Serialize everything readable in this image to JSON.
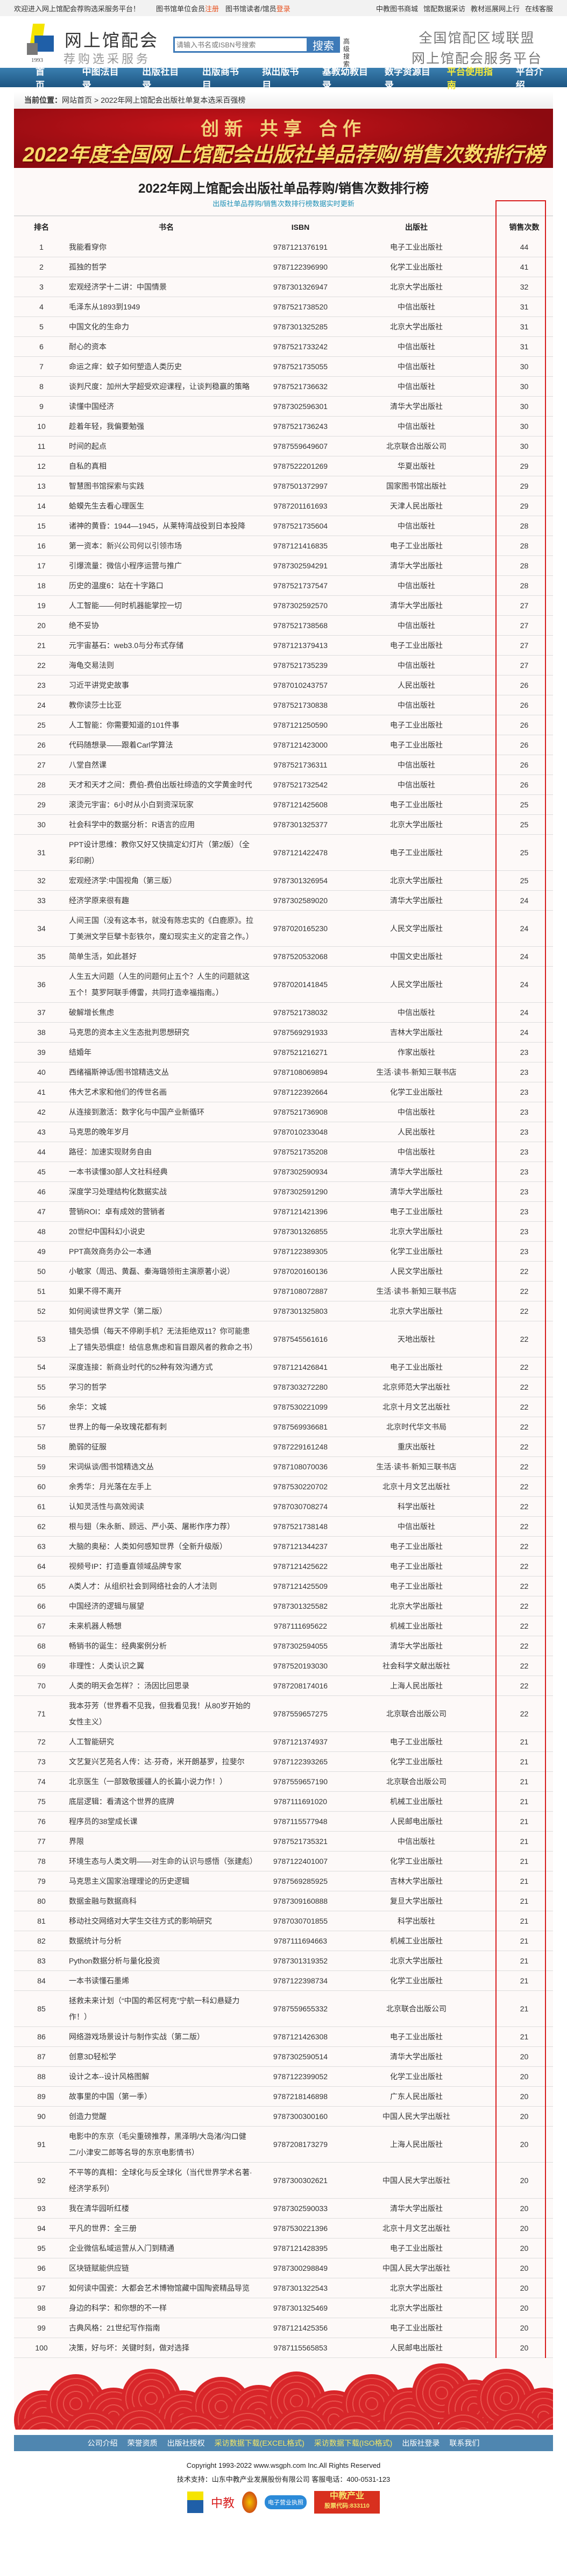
{
  "topbar": {
    "welcome": "欢迎进入网上馆配会荐购选采服务平台！",
    "member": "图书馆单位会员",
    "register": "注册",
    "reader": "图书馆读者/馆员",
    "login": "登录",
    "links": [
      "中教图书商城",
      "馆配数据采访",
      "教材巡展网上行",
      "在线客服"
    ]
  },
  "header": {
    "logo_year": "1993",
    "brand": "网上馆配会",
    "brand_sub": "荐购选采服务",
    "search_placeholder": "请输入书名或ISBN号搜索",
    "search_button": "搜索",
    "advanced_search": "高级搜索",
    "slogan1": "全国馆配区域联盟",
    "slogan2": "网上馆配会服务平台"
  },
  "nav": {
    "items": [
      "首页",
      "中图法目录",
      "出版社目录",
      "出版商书目",
      "拟出版书目",
      "基教幼教目录",
      "数字资源目录",
      "平台使用指南",
      "平台介绍"
    ],
    "highlight": "平台使用指南"
  },
  "breadcrumb": {
    "label": "当前位置：",
    "home": "网站首页",
    "sep": ">",
    "current": "2022年网上馆配会出版社单复本选采百强榜"
  },
  "banner": {
    "slogan": "创新 共享 合作",
    "title": "2022年度全国网上馆配会出版社单品荐购/销售次数排行榜"
  },
  "page": {
    "title": "2022年网上馆配会出版社单品荐购/销售次数排行榜",
    "subtitle": "出版社单品荐购/销售次数排行榜数据实时更新"
  },
  "table": {
    "headers": [
      "排名",
      "书名",
      "ISBN",
      "出版社",
      "销售次数"
    ],
    "rows": [
      [
        "1",
        "我能看穿你",
        "9787121376191",
        "电子工业出版社",
        "44"
      ],
      [
        "2",
        "孤独的哲学",
        "9787122396990",
        "化学工业出版社",
        "41"
      ],
      [
        "3",
        "宏观经济学十二讲：中国情景",
        "9787301326947",
        "北京大学出版社",
        "32"
      ],
      [
        "4",
        "毛泽东从1893到1949",
        "9787521738520",
        "中信出版社",
        "31"
      ],
      [
        "5",
        "中国文化的生命力",
        "9787301325285",
        "北京大学出版社",
        "31"
      ],
      [
        "6",
        "耐心的资本",
        "9787521733242",
        "中信出版社",
        "31"
      ],
      [
        "7",
        "命运之痒：蚊子如何塑造人类历史",
        "9787521735055",
        "中信出版社",
        "30"
      ],
      [
        "8",
        "谈判尺度：加州大学超受欢迎课程，让谈判稳赢的策略",
        "9787521736632",
        "中信出版社",
        "30"
      ],
      [
        "9",
        "读懂中国经济",
        "9787302596301",
        "清华大学出版社",
        "30"
      ],
      [
        "10",
        "趁着年轻，我偏要勉强",
        "9787521736243",
        "中信出版社",
        "30"
      ],
      [
        "11",
        "时间的起点",
        "9787559649607",
        "北京联合出版公司",
        "30"
      ],
      [
        "12",
        "自私的真相",
        "9787522201269",
        "华夏出版社",
        "29"
      ],
      [
        "13",
        "智慧图书馆探索与实践",
        "9787501372997",
        "国家图书馆出版社",
        "29"
      ],
      [
        "14",
        "蛤蟆先生去看心理医生",
        "9787201161693",
        "天津人民出版社",
        "29"
      ],
      [
        "15",
        "诸神的黄昏：1944—1945，从莱特湾战役到日本投降",
        "9787521735604",
        "中信出版社",
        "28"
      ],
      [
        "16",
        "第一资本：新兴公司何以引领市场",
        "9787121416835",
        "电子工业出版社",
        "28"
      ],
      [
        "17",
        "引爆流量：微信小程序运营与推广",
        "9787302594291",
        "清华大学出版社",
        "28"
      ],
      [
        "18",
        "历史的温度6：站在十字路口",
        "9787521737547",
        "中信出版社",
        "28"
      ],
      [
        "19",
        "人工智能——何时机器能掌控一切",
        "9787302592570",
        "清华大学出版社",
        "27"
      ],
      [
        "20",
        "绝不妥协",
        "9787521738568",
        "中信出版社",
        "27"
      ],
      [
        "21",
        "元宇宙基石：web3.0与分布式存储",
        "9787121379413",
        "电子工业出版社",
        "27"
      ],
      [
        "22",
        "海龟交易法则",
        "9787521735239",
        "中信出版社",
        "27"
      ],
      [
        "23",
        "习近平讲党史故事",
        "9787010243757",
        "人民出版社",
        "26"
      ],
      [
        "24",
        "教你读莎士比亚",
        "9787521730838",
        "中信出版社",
        "26"
      ],
      [
        "25",
        "人工智能：你需要知道的101件事",
        "9787121250590",
        "电子工业出版社",
        "26"
      ],
      [
        "26",
        "代码随想录——跟着Carl学算法",
        "9787121423000",
        "电子工业出版社",
        "26"
      ],
      [
        "27",
        "八堂自然课",
        "9787521736311",
        "中信出版社",
        "26"
      ],
      [
        "28",
        "天才和天才之间：费伯-费伯出版社缔造的文学黄金时代",
        "9787521732542",
        "中信出版社",
        "26"
      ],
      [
        "29",
        "滚烫元宇宙：6小时从小白到资深玩家",
        "9787121425608",
        "电子工业出版社",
        "25"
      ],
      [
        "30",
        "社会科学中的数据分析：R语言的应用",
        "9787301325377",
        "北京大学出版社",
        "25"
      ],
      [
        "31",
        "PPT设计思维：教你又好又快搞定幻灯片（第2版）（全彩印刷）",
        "9787121422478",
        "电子工业出版社",
        "25"
      ],
      [
        "32",
        "宏观经济学:中国视角（第三版）",
        "9787301326954",
        "北京大学出版社",
        "25"
      ],
      [
        "33",
        "经济学原来很有趣",
        "9787302589020",
        "清华大学出版社",
        "24"
      ],
      [
        "34",
        "人间王国（没有这本书，就没有陈忠实的《白鹿原》。拉丁美洲文学巨擘卡彭铁尔，魔幻现实主义的定音之作。）",
        "9787020165230",
        "人民文学出版社",
        "24"
      ],
      [
        "35",
        "简单生活，如此甚好",
        "9787520532068",
        "中国文史出版社",
        "24"
      ],
      [
        "36",
        "人生五大问题（人生的问题何止五个？人生的问题就这五个！莫罗阿联手傅雷，共同打造幸福指南。）",
        "9787020141845",
        "人民文学出版社",
        "24"
      ],
      [
        "37",
        "破解增长焦虑",
        "9787521738032",
        "中信出版社",
        "24"
      ],
      [
        "38",
        "马克思的资本主义生态批判思想研究",
        "9787569291933",
        "吉林大学出版社",
        "24"
      ],
      [
        "39",
        "结婚年",
        "9787521216271",
        "作家出版社",
        "23"
      ],
      [
        "40",
        "西绪福斯神话/图书馆精选文丛",
        "9787108069894",
        "生活·读书·新知三联书店",
        "23"
      ],
      [
        "41",
        "伟大艺术家和他们的传世名画",
        "9787122392664",
        "化学工业出版社",
        "23"
      ],
      [
        "42",
        "从连接到激活：数字化与中国产业新循环",
        "9787521736908",
        "中信出版社",
        "23"
      ],
      [
        "43",
        "马克思的晚年岁月",
        "9787010233048",
        "人民出版社",
        "23"
      ],
      [
        "44",
        "路径：加速实现财务自由",
        "9787521735208",
        "中信出版社",
        "23"
      ],
      [
        "45",
        "一本书读懂30部人文社科经典",
        "9787302590934",
        "清华大学出版社",
        "23"
      ],
      [
        "46",
        "深度学习处理结构化数据实战",
        "9787302591290",
        "清华大学出版社",
        "23"
      ],
      [
        "47",
        "营销ROI：卓有成效的营销者",
        "9787121421396",
        "电子工业出版社",
        "23"
      ],
      [
        "48",
        "20世纪中国科幻小说史",
        "9787301326855",
        "北京大学出版社",
        "23"
      ],
      [
        "49",
        "PPT高效商务办公一本通",
        "9787122389305",
        "化学工业出版社",
        "23"
      ],
      [
        "50",
        "小敏家（周迅、黄磊、秦海璐领衔主演原著小说）",
        "9787020160136",
        "人民文学出版社",
        "22"
      ],
      [
        "51",
        "如果不得不离开",
        "9787108072887",
        "生活·读书·新知三联书店",
        "22"
      ],
      [
        "52",
        "如何阅读世界文学（第二版）",
        "9787301325803",
        "北京大学出版社",
        "22"
      ],
      [
        "53",
        "错失恐惧（每天不停刷手机？无法拒绝双11？你可能患上了错失恐惧症！给信息焦虑和盲目跟风者的救命之书）",
        "9787545561616",
        "天地出版社",
        "22"
      ],
      [
        "54",
        "深度连接：新商业时代的52种有效沟通方式",
        "9787121426841",
        "电子工业出版社",
        "22"
      ],
      [
        "55",
        "学习的哲学",
        "9787303272280",
        "北京师范大学出版社",
        "22"
      ],
      [
        "56",
        "余华：文城",
        "9787530221099",
        "北京十月文艺出版社",
        "22"
      ],
      [
        "57",
        "世界上的每一朵玫瑰花都有刺",
        "9787569936681",
        "北京时代华文书局",
        "22"
      ],
      [
        "58",
        "脆弱的征服",
        "9787229161248",
        "重庆出版社",
        "22"
      ],
      [
        "59",
        "宋词纵谈/图书馆精选文丛",
        "9787108070036",
        "生活·读书·新知三联书店",
        "22"
      ],
      [
        "60",
        "余秀华：月光落在左手上",
        "9787530220702",
        "北京十月文艺出版社",
        "22"
      ],
      [
        "61",
        "认知灵活性与高效阅读",
        "9787030708274",
        "科学出版社",
        "22"
      ],
      [
        "62",
        "根与翅（朱永新、顾远、严小英、屠彬作序力荐）",
        "9787521738148",
        "中信出版社",
        "22"
      ],
      [
        "63",
        "大脑的奥秘：人类如何感知世界（全新升级版）",
        "9787121344237",
        "电子工业出版社",
        "22"
      ],
      [
        "64",
        "视频号IP：打造垂直领域品牌专家",
        "9787121425622",
        "电子工业出版社",
        "22"
      ],
      [
        "65",
        "A类人才：从组织社会到网络社会的人才法则",
        "9787121425509",
        "电子工业出版社",
        "22"
      ],
      [
        "66",
        "中国经济的逻辑与展望",
        "9787301325582",
        "北京大学出版社",
        "22"
      ],
      [
        "67",
        "未来机器人畅想",
        "9787111695622",
        "机械工业出版社",
        "22"
      ],
      [
        "68",
        "畅销书的诞生：经典案例分析",
        "9787302594055",
        "清华大学出版社",
        "22"
      ],
      [
        "69",
        "非理性：人类认识之翼",
        "9787520193030",
        "社会科学文献出版社",
        "22"
      ],
      [
        "70",
        "人类的明天会怎样？：汤因比回思录",
        "9787208174016",
        "上海人民出版社",
        "22"
      ],
      [
        "71",
        "我本芬芳（世界看不见我，但我看见我！从80岁开始的女性主义）",
        "9787559657275",
        "北京联合出版公司",
        "22"
      ],
      [
        "72",
        "人工智能研究",
        "9787121374937",
        "电子工业出版社",
        "21"
      ],
      [
        "73",
        "文艺复兴艺苑名人传：达·芬奇，米开朗基罗，拉斐尔",
        "9787122393265",
        "化学工业出版社",
        "21"
      ],
      [
        "74",
        "北京医生（一部致敬援疆人的长篇小说力作！）",
        "9787559657190",
        "北京联合出版公司",
        "21"
      ],
      [
        "75",
        "底层逻辑：看清这个世界的底牌",
        "9787111691020",
        "机械工业出版社",
        "21"
      ],
      [
        "76",
        "程序员的38堂成长课",
        "9787115577948",
        "人民邮电出版社",
        "21"
      ],
      [
        "77",
        "界限",
        "9787521735321",
        "中信出版社",
        "21"
      ],
      [
        "78",
        "环境生态与人类文明——对生命的认识与感悟（张建彪）",
        "9787122401007",
        "化学工业出版社",
        "21"
      ],
      [
        "79",
        "马克思主义国家治理理论的历史逻辑",
        "9787569285925",
        "吉林大学出版社",
        "21"
      ],
      [
        "80",
        "数据金融与数据商科",
        "9787309160888",
        "复旦大学出版社",
        "21"
      ],
      [
        "81",
        "移动社交网络对大学生交往方式的影响研究",
        "9787030701855",
        "科学出版社",
        "21"
      ],
      [
        "82",
        "数据统计与分析",
        "9787111694663",
        "机械工业出版社",
        "21"
      ],
      [
        "83",
        "Python数据分析与量化投资",
        "9787301319352",
        "北京大学出版社",
        "21"
      ],
      [
        "84",
        "一本书读懂石墨烯",
        "9787122398734",
        "化学工业出版社",
        "21"
      ],
      [
        "85",
        "拯救未来计划（“中国的希区柯克”宁航一科幻悬疑力作！）",
        "9787559655332",
        "北京联合出版公司",
        "21"
      ],
      [
        "86",
        "网络游戏场景设计与制作实战（第二版）",
        "9787121426308",
        "电子工业出版社",
        "21"
      ],
      [
        "87",
        "创意3D轻松学",
        "9787302590514",
        "清华大学出版社",
        "20"
      ],
      [
        "88",
        "设计之本--设计风格图解",
        "9787122399052",
        "化学工业出版社",
        "20"
      ],
      [
        "89",
        "故事里的中国（第一季）",
        "9787218146898",
        "广东人民出版社",
        "20"
      ],
      [
        "90",
        "创造力觉醒",
        "9787300300160",
        "中国人民大学出版社",
        "20"
      ],
      [
        "91",
        "电影中的东京（毛尖重磅推荐，黑泽明/大岛渚/沟口健二/小津安二郎等名导的东京电影情书）",
        "9787208173279",
        "上海人民出版社",
        "20"
      ],
      [
        "92",
        "不平等的真相：全球化与反全球化（当代世界学术名著·经济学系列）",
        "9787300302621",
        "中国人民大学出版社",
        "20"
      ],
      [
        "93",
        "我在清华园听红楼",
        "9787302590033",
        "清华大学出版社",
        "20"
      ],
      [
        "94",
        "平凡的世界：全三册",
        "9787530221396",
        "北京十月文艺出版社",
        "20"
      ],
      [
        "95",
        "企业微信私域运营从入门到精通",
        "9787121428395",
        "电子工业出版社",
        "20"
      ],
      [
        "96",
        "区块链赋能供应链",
        "9787300298849",
        "中国人民大学出版社",
        "20"
      ],
      [
        "97",
        "如何读中国瓷：大都会艺术博物馆藏中国陶瓷精品导览",
        "9787301322543",
        "北京大学出版社",
        "20"
      ],
      [
        "98",
        "身边的科学：和你想的不一样",
        "9787301325469",
        "北京大学出版社",
        "20"
      ],
      [
        "99",
        "古典风格：21世纪写作指南",
        "9787121425356",
        "电子工业出版社",
        "20"
      ],
      [
        "100",
        "决策，好与坏：关键时刻，做对选择",
        "9787115565853",
        "人民邮电出版社",
        "20"
      ]
    ]
  },
  "footer": {
    "links": [
      "公司介绍",
      "荣誉资质",
      "出版社授权",
      "采访数据下载(EXCEL格式)",
      "采访数据下载(ISO格式)",
      "出版社登录",
      "联系我们"
    ],
    "highlight_links": [
      "采访数据下载(EXCEL格式)",
      "采访数据下载(ISO格式)"
    ],
    "copyright": "Copyright 1993-2022 www.wsgph.com Inc.All Rights Reserved",
    "support": "技术支持：山东中教产业发展股份有限公司  客服电话：400-0531-123",
    "logo_text": "中教",
    "license_badge": "电子营业执照",
    "stock_badge_1": "中教产业",
    "stock_badge_2": "股票代码:833110"
  },
  "colors": {
    "nav": "#1d5582",
    "highlight": "#f5ea3a",
    "accent_red": "#d81e1e",
    "subtitle": "#1a8fb5"
  }
}
